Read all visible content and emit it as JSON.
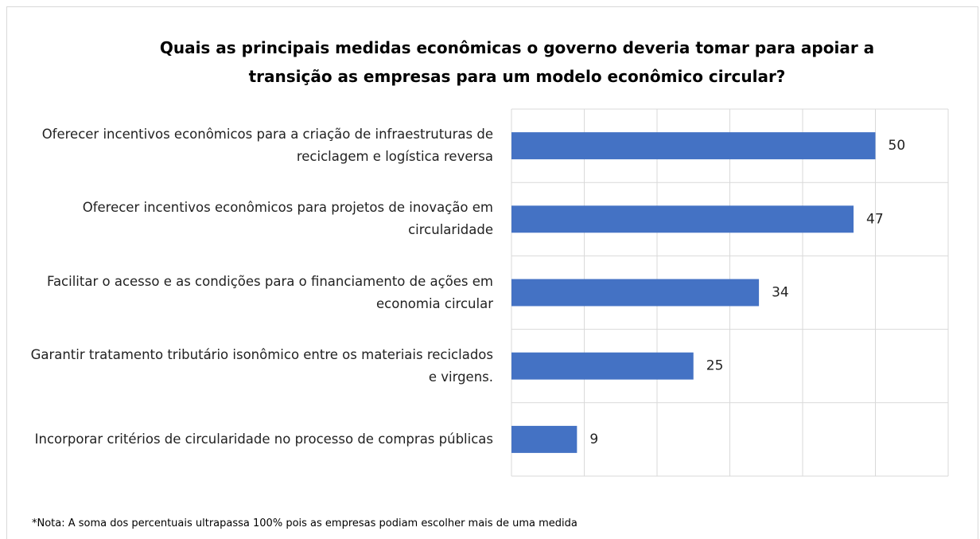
{
  "chart_data": {
    "type": "bar",
    "orientation": "horizontal",
    "title": "Quais as principais medidas econômicas o governo deveria tomar para apoiar a transição as empresas para um modelo econômico circular?",
    "categories": [
      "Oferecer incentivos econômicos para a criação de infraestruturas de reciclagem e logística reversa",
      "Oferecer incentivos econômicos para projetos de inovação em circularidade",
      "Facilitar o acesso e as condições para o financiamento de ações em economia circular",
      "Garantir tratamento tributário isonômico entre os materiais reciclados e virgens.",
      "Incorporar critérios de circularidade no processo de compras públicas"
    ],
    "values": [
      50,
      47,
      34,
      25,
      9
    ],
    "color": "#4472c4",
    "xlim": [
      0,
      60
    ],
    "xticks": [
      0,
      10,
      20,
      30,
      40,
      50,
      60
    ],
    "grid": true,
    "note": "*Nota: A soma dos percentuais ultrapassa 100% pois as empresas podiam escolher mais de uma  medida"
  }
}
